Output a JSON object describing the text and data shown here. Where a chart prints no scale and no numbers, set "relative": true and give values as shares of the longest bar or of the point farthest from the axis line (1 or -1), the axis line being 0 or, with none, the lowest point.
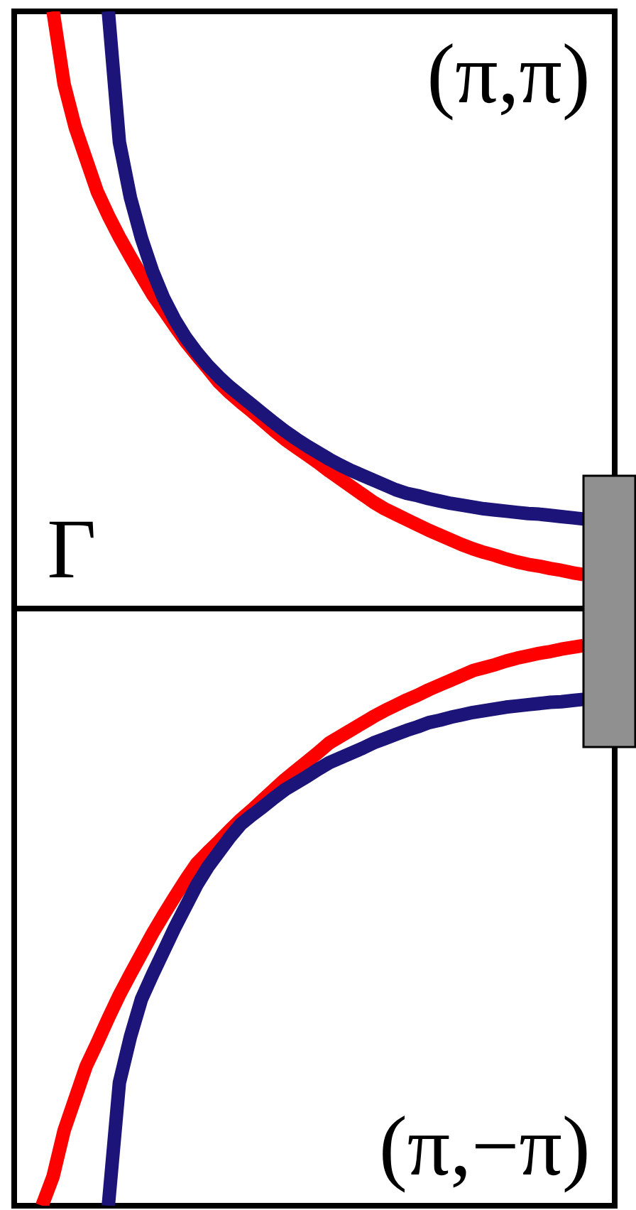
{
  "chart_data": {
    "type": "line",
    "relative": true,
    "categories": [
      null,
      null,
      null,
      null,
      null,
      null,
      null,
      null,
      null,
      null,
      null,
      null,
      null,
      null,
      null,
      null,
      null,
      null,
      null,
      null,
      null,
      null,
      null,
      null,
      null,
      null,
      null,
      null,
      null,
      null,
      null,
      null,
      null,
      null,
      null,
      null,
      null,
      null,
      null,
      null,
      null,
      null,
      null,
      null,
      null,
      null,
      null,
      null,
      null,
      null
    ],
    "series": [
      {
        "color": "#ff0000",
        "values": [
          null,
          1.0,
          0.878,
          0.806,
          0.752,
          0.698,
          0.658,
          0.622,
          0.589,
          0.557,
          0.526,
          0.5,
          0.473,
          0.447,
          0.424,
          0.402,
          0.379,
          0.361,
          0.345,
          0.33,
          0.314,
          0.298,
          0.283,
          0.27,
          0.257,
          0.244,
          0.23,
          0.217,
          0.204,
          0.191,
          0.178,
          0.167,
          0.158,
          0.149,
          0.14,
          0.131,
          0.123,
          0.115,
          0.107,
          0.1,
          0.094,
          0.089,
          0.083,
          0.078,
          0.074,
          0.071,
          0.067,
          0.064,
          0.06,
          0.057
        ]
      },
      {
        "color": "#1c1478",
        "values": [
          null,
          null,
          null,
          null,
          null,
          null,
          1.0,
          0.781,
          0.688,
          0.62,
          0.565,
          0.52,
          0.484,
          0.454,
          0.429,
          0.407,
          0.388,
          0.371,
          0.356,
          0.341,
          0.326,
          0.311,
          0.297,
          0.284,
          0.272,
          0.261,
          0.25,
          0.24,
          0.231,
          0.223,
          0.215,
          0.207,
          0.199,
          0.193,
          0.189,
          0.184,
          0.18,
          0.176,
          0.173,
          0.17,
          0.167,
          0.165,
          0.163,
          0.161,
          0.159,
          0.158,
          0.156,
          0.154,
          0.152,
          0.15
        ]
      },
      {
        "color": "#ff0000",
        "values": [
          -1.0,
          -0.951,
          -0.874,
          -0.82,
          -0.766,
          -0.727,
          -0.686,
          -0.647,
          -0.612,
          -0.578,
          -0.544,
          -0.513,
          -0.483,
          -0.454,
          -0.427,
          -0.408,
          -0.39,
          -0.371,
          -0.353,
          -0.337,
          -0.32,
          -0.303,
          -0.286,
          -0.271,
          -0.256,
          -0.241,
          -0.225,
          -0.214,
          -0.203,
          -0.192,
          -0.181,
          -0.171,
          -0.162,
          -0.153,
          -0.145,
          -0.136,
          -0.128,
          -0.12,
          -0.112,
          -0.104,
          -0.099,
          -0.094,
          -0.088,
          -0.083,
          -0.079,
          -0.075,
          -0.072,
          -0.068,
          -0.065,
          -0.062
        ]
      },
      {
        "color": "#1c1478",
        "values": [
          null,
          null,
          null,
          null,
          null,
          null,
          -1.0,
          -0.794,
          -0.717,
          -0.654,
          -0.613,
          -0.574,
          -0.535,
          -0.499,
          -0.463,
          -0.433,
          -0.408,
          -0.383,
          -0.361,
          -0.346,
          -0.332,
          -0.317,
          -0.303,
          -0.292,
          -0.281,
          -0.269,
          -0.258,
          -0.25,
          -0.242,
          -0.234,
          -0.225,
          -0.218,
          -0.211,
          -0.204,
          -0.198,
          -0.191,
          -0.187,
          -0.182,
          -0.178,
          -0.174,
          -0.171,
          -0.168,
          -0.165,
          -0.163,
          -0.161,
          -0.159,
          -0.157,
          -0.156,
          -0.154,
          -0.152
        ]
      }
    ],
    "annotations": [
      "(π,π)",
      "Γ",
      "(π,−π)"
    ]
  }
}
